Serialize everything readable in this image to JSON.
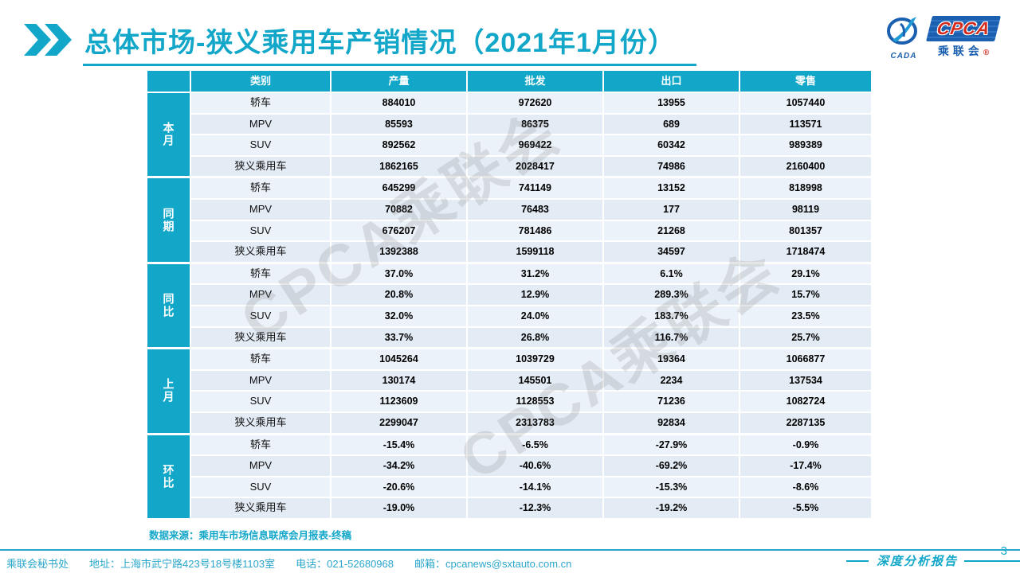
{
  "title": "总体市场-狭义乘用车产销情况（2021年1月份）",
  "logo": {
    "emblem_text": "CADA",
    "box_text": "CPCA",
    "cn_text": "乘联会",
    "seal_mark": "®"
  },
  "watermark_text": "CPCA乘联会",
  "table": {
    "headers": [
      "",
      "类别",
      "产量",
      "批发",
      "出口",
      "零售"
    ],
    "groups": [
      {
        "label": "本月",
        "rows": [
          [
            "轿车",
            "884010",
            "972620",
            "13955",
            "1057440"
          ],
          [
            "MPV",
            "85593",
            "86375",
            "689",
            "113571"
          ],
          [
            "SUV",
            "892562",
            "969422",
            "60342",
            "989389"
          ],
          [
            "狭义乘用车",
            "1862165",
            "2028417",
            "74986",
            "2160400"
          ]
        ]
      },
      {
        "label": "同期",
        "rows": [
          [
            "轿车",
            "645299",
            "741149",
            "13152",
            "818998"
          ],
          [
            "MPV",
            "70882",
            "76483",
            "177",
            "98119"
          ],
          [
            "SUV",
            "676207",
            "781486",
            "21268",
            "801357"
          ],
          [
            "狭义乘用车",
            "1392388",
            "1599118",
            "34597",
            "1718474"
          ]
        ]
      },
      {
        "label": "同比",
        "rows": [
          [
            "轿车",
            "37.0%",
            "31.2%",
            "6.1%",
            "29.1%"
          ],
          [
            "MPV",
            "20.8%",
            "12.9%",
            "289.3%",
            "15.7%"
          ],
          [
            "SUV",
            "32.0%",
            "24.0%",
            "183.7%",
            "23.5%"
          ],
          [
            "狭义乘用车",
            "33.7%",
            "26.8%",
            "116.7%",
            "25.7%"
          ]
        ]
      },
      {
        "label": "上月",
        "rows": [
          [
            "轿车",
            "1045264",
            "1039729",
            "19364",
            "1066877"
          ],
          [
            "MPV",
            "130174",
            "145501",
            "2234",
            "137534"
          ],
          [
            "SUV",
            "1123609",
            "1128553",
            "71236",
            "1082724"
          ],
          [
            "狭义乘用车",
            "2299047",
            "2313783",
            "92834",
            "2287135"
          ]
        ]
      },
      {
        "label": "环比",
        "rows": [
          [
            "轿车",
            "-15.4%",
            "-6.5%",
            "-27.9%",
            "-0.9%"
          ],
          [
            "MPV",
            "-34.2%",
            "-40.6%",
            "-69.2%",
            "-17.4%"
          ],
          [
            "SUV",
            "-20.6%",
            "-14.1%",
            "-15.3%",
            "-8.6%"
          ],
          [
            "狭义乘用车",
            "-19.0%",
            "-12.3%",
            "-19.2%",
            "-5.5%"
          ]
        ]
      }
    ]
  },
  "source_note": "数据来源：乘用车市场信息联席会月报表-终稿",
  "footer": {
    "items": [
      "乘联会秘书处",
      "地址：上海市武宁路423号18号楼1103室",
      "电话：021-52680968",
      "邮箱：cpcanews@sxtauto.com.cn"
    ],
    "report_label": "深度分析报告",
    "page_number": "3"
  },
  "colors": {
    "accent": "#12A7C9",
    "row_light": "#ECF2F9",
    "row_dark": "#E3EBF5",
    "logo_blue": "#1B5FAF",
    "logo_red": "#D42B1E"
  }
}
